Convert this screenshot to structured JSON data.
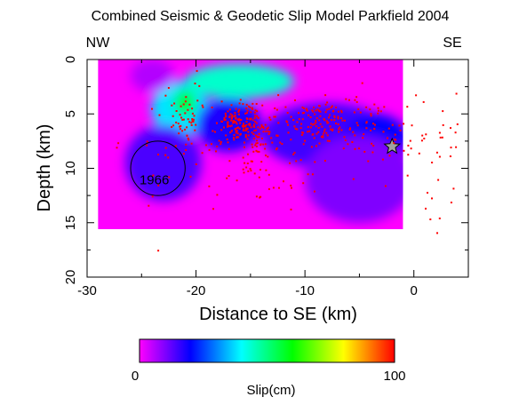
{
  "chart_data": {
    "type": "heatmap",
    "title": "Combined Seismic & Geodetic Slip Model Parkfield 2004",
    "xlabel": "Distance to SE (km)",
    "ylabel": "Depth (km)",
    "xlim": [
      -30,
      5
    ],
    "ylim": [
      0,
      20
    ],
    "y_inverted": true,
    "x_ticks": [
      -30,
      -20,
      -10,
      0
    ],
    "y_ticks": [
      0,
      5,
      10,
      15,
      20
    ],
    "direction_labels": {
      "left": "NW",
      "right": "SE"
    },
    "fault_extent": {
      "x": [
        -29,
        -1
      ],
      "depth": [
        0,
        15.6
      ]
    },
    "slip_patches": [
      {
        "x": -21.5,
        "depth": 4.5,
        "rx": 2.6,
        "rdepth": 2.5,
        "slip": 38
      },
      {
        "x": -21.0,
        "depth": 4.0,
        "rx": 1.0,
        "rdepth": 1.2,
        "slip": 58
      },
      {
        "x": -16.0,
        "depth": 2.0,
        "rx": 5.0,
        "rdepth": 1.6,
        "slip": 44
      },
      {
        "x": -17.0,
        "depth": 6.0,
        "rx": 3.0,
        "rdepth": 2.5,
        "slip": 18
      },
      {
        "x": -8.0,
        "depth": 7.0,
        "rx": 6.0,
        "rdepth": 3.0,
        "slip": 15
      },
      {
        "x": -3.5,
        "depth": 7.5,
        "rx": 3.0,
        "rdepth": 2.5,
        "slip": 20
      },
      {
        "x": -23.0,
        "depth": 9.5,
        "rx": 3.5,
        "rdepth": 3.5,
        "slip": 14
      },
      {
        "x": -5.0,
        "depth": 11.0,
        "rx": 5.0,
        "rdepth": 4.0,
        "slip": 10
      },
      {
        "x": -24.0,
        "depth": 1.5,
        "rx": 2.0,
        "rdepth": 1.5,
        "slip": 6
      }
    ],
    "hypocenter": {
      "x": -2,
      "depth": 8
    },
    "annotation_1966": {
      "label": "1966",
      "x": -23.5,
      "depth": 10.0,
      "radius_km": 2.5
    },
    "aftershock_clusters": [
      {
        "x": -15.5,
        "depth": 6.0,
        "sx": 1.2,
        "sdepth": 1.0,
        "count": 180
      },
      {
        "x": -21.0,
        "depth": 5.0,
        "sx": 1.0,
        "sdepth": 1.5,
        "count": 50
      },
      {
        "x": -8.5,
        "depth": 5.5,
        "sx": 1.8,
        "sdepth": 1.0,
        "count": 120
      },
      {
        "x": -13.0,
        "depth": 7.5,
        "sx": 4.0,
        "sdepth": 2.2,
        "count": 80
      },
      {
        "x": -4.0,
        "depth": 6.5,
        "sx": 1.5,
        "sdepth": 1.5,
        "count": 40
      },
      {
        "x": 2.0,
        "depth": 9.0,
        "sx": 2.0,
        "sdepth": 3.0,
        "count": 45
      },
      {
        "x": -16.0,
        "depth": 10.5,
        "sx": 3.5,
        "sdepth": 2.0,
        "count": 35
      },
      {
        "x": -24.0,
        "depth": 8.0,
        "sx": 2.0,
        "sdepth": 2.5,
        "count": 15
      }
    ],
    "colorbar": {
      "label": "Slip(cm)",
      "min": 0,
      "max": 100,
      "stops": [
        "#ff00ff",
        "#0000ff",
        "#00ffff",
        "#00ff00",
        "#ffff00",
        "#ff0000"
      ]
    },
    "colors": {
      "aftershocks": "#ff0000",
      "hypocenter_star": "#a0a0a0"
    }
  }
}
